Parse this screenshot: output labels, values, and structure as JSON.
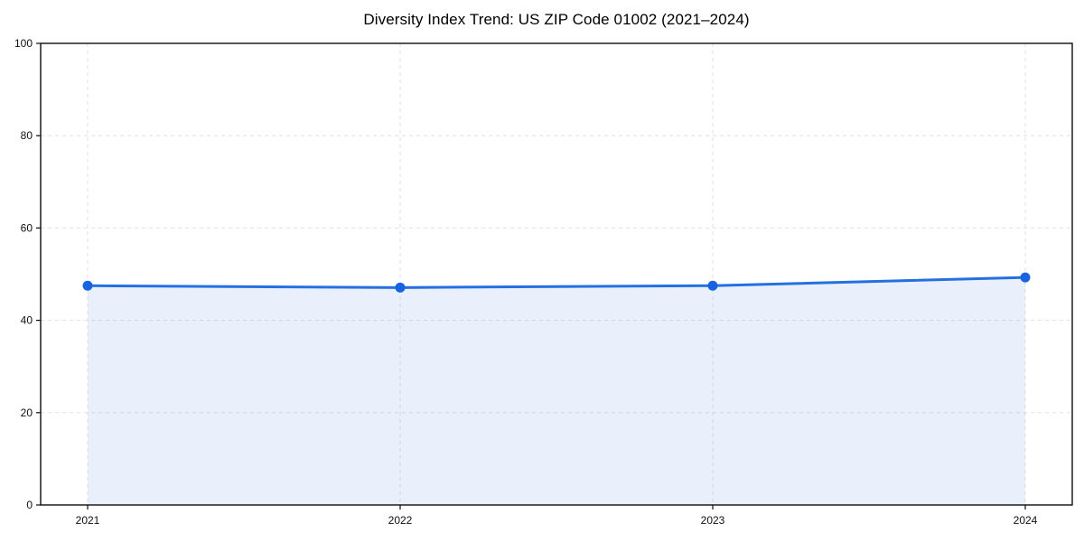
{
  "page": {
    "background": "#ffffff"
  },
  "chart_data": {
    "type": "area",
    "title": "Diversity Index Trend: US ZIP Code 01002 (2021–2024)",
    "categories": [
      "2021",
      "2022",
      "2023",
      "2024"
    ],
    "series": [
      {
        "name": "Diversity Index",
        "values": [
          47.5,
          47.1,
          47.5,
          49.3
        ]
      }
    ],
    "xlabel": "",
    "ylabel": "",
    "ylim": [
      0,
      100
    ],
    "yticks": [
      0,
      20,
      40,
      60,
      80,
      100
    ],
    "grid": "dashed-both",
    "legend": "none",
    "area_fill_extent": "between-first-and-last-x",
    "colors": {
      "line": "#2470e2",
      "marker": "#1a62e0",
      "fill": "rgba(36,112,228,0.10)",
      "grid": "#e1e1e1",
      "spine": "#0d0d0d",
      "tick_text": "#111111",
      "background": "#ffffff"
    }
  }
}
